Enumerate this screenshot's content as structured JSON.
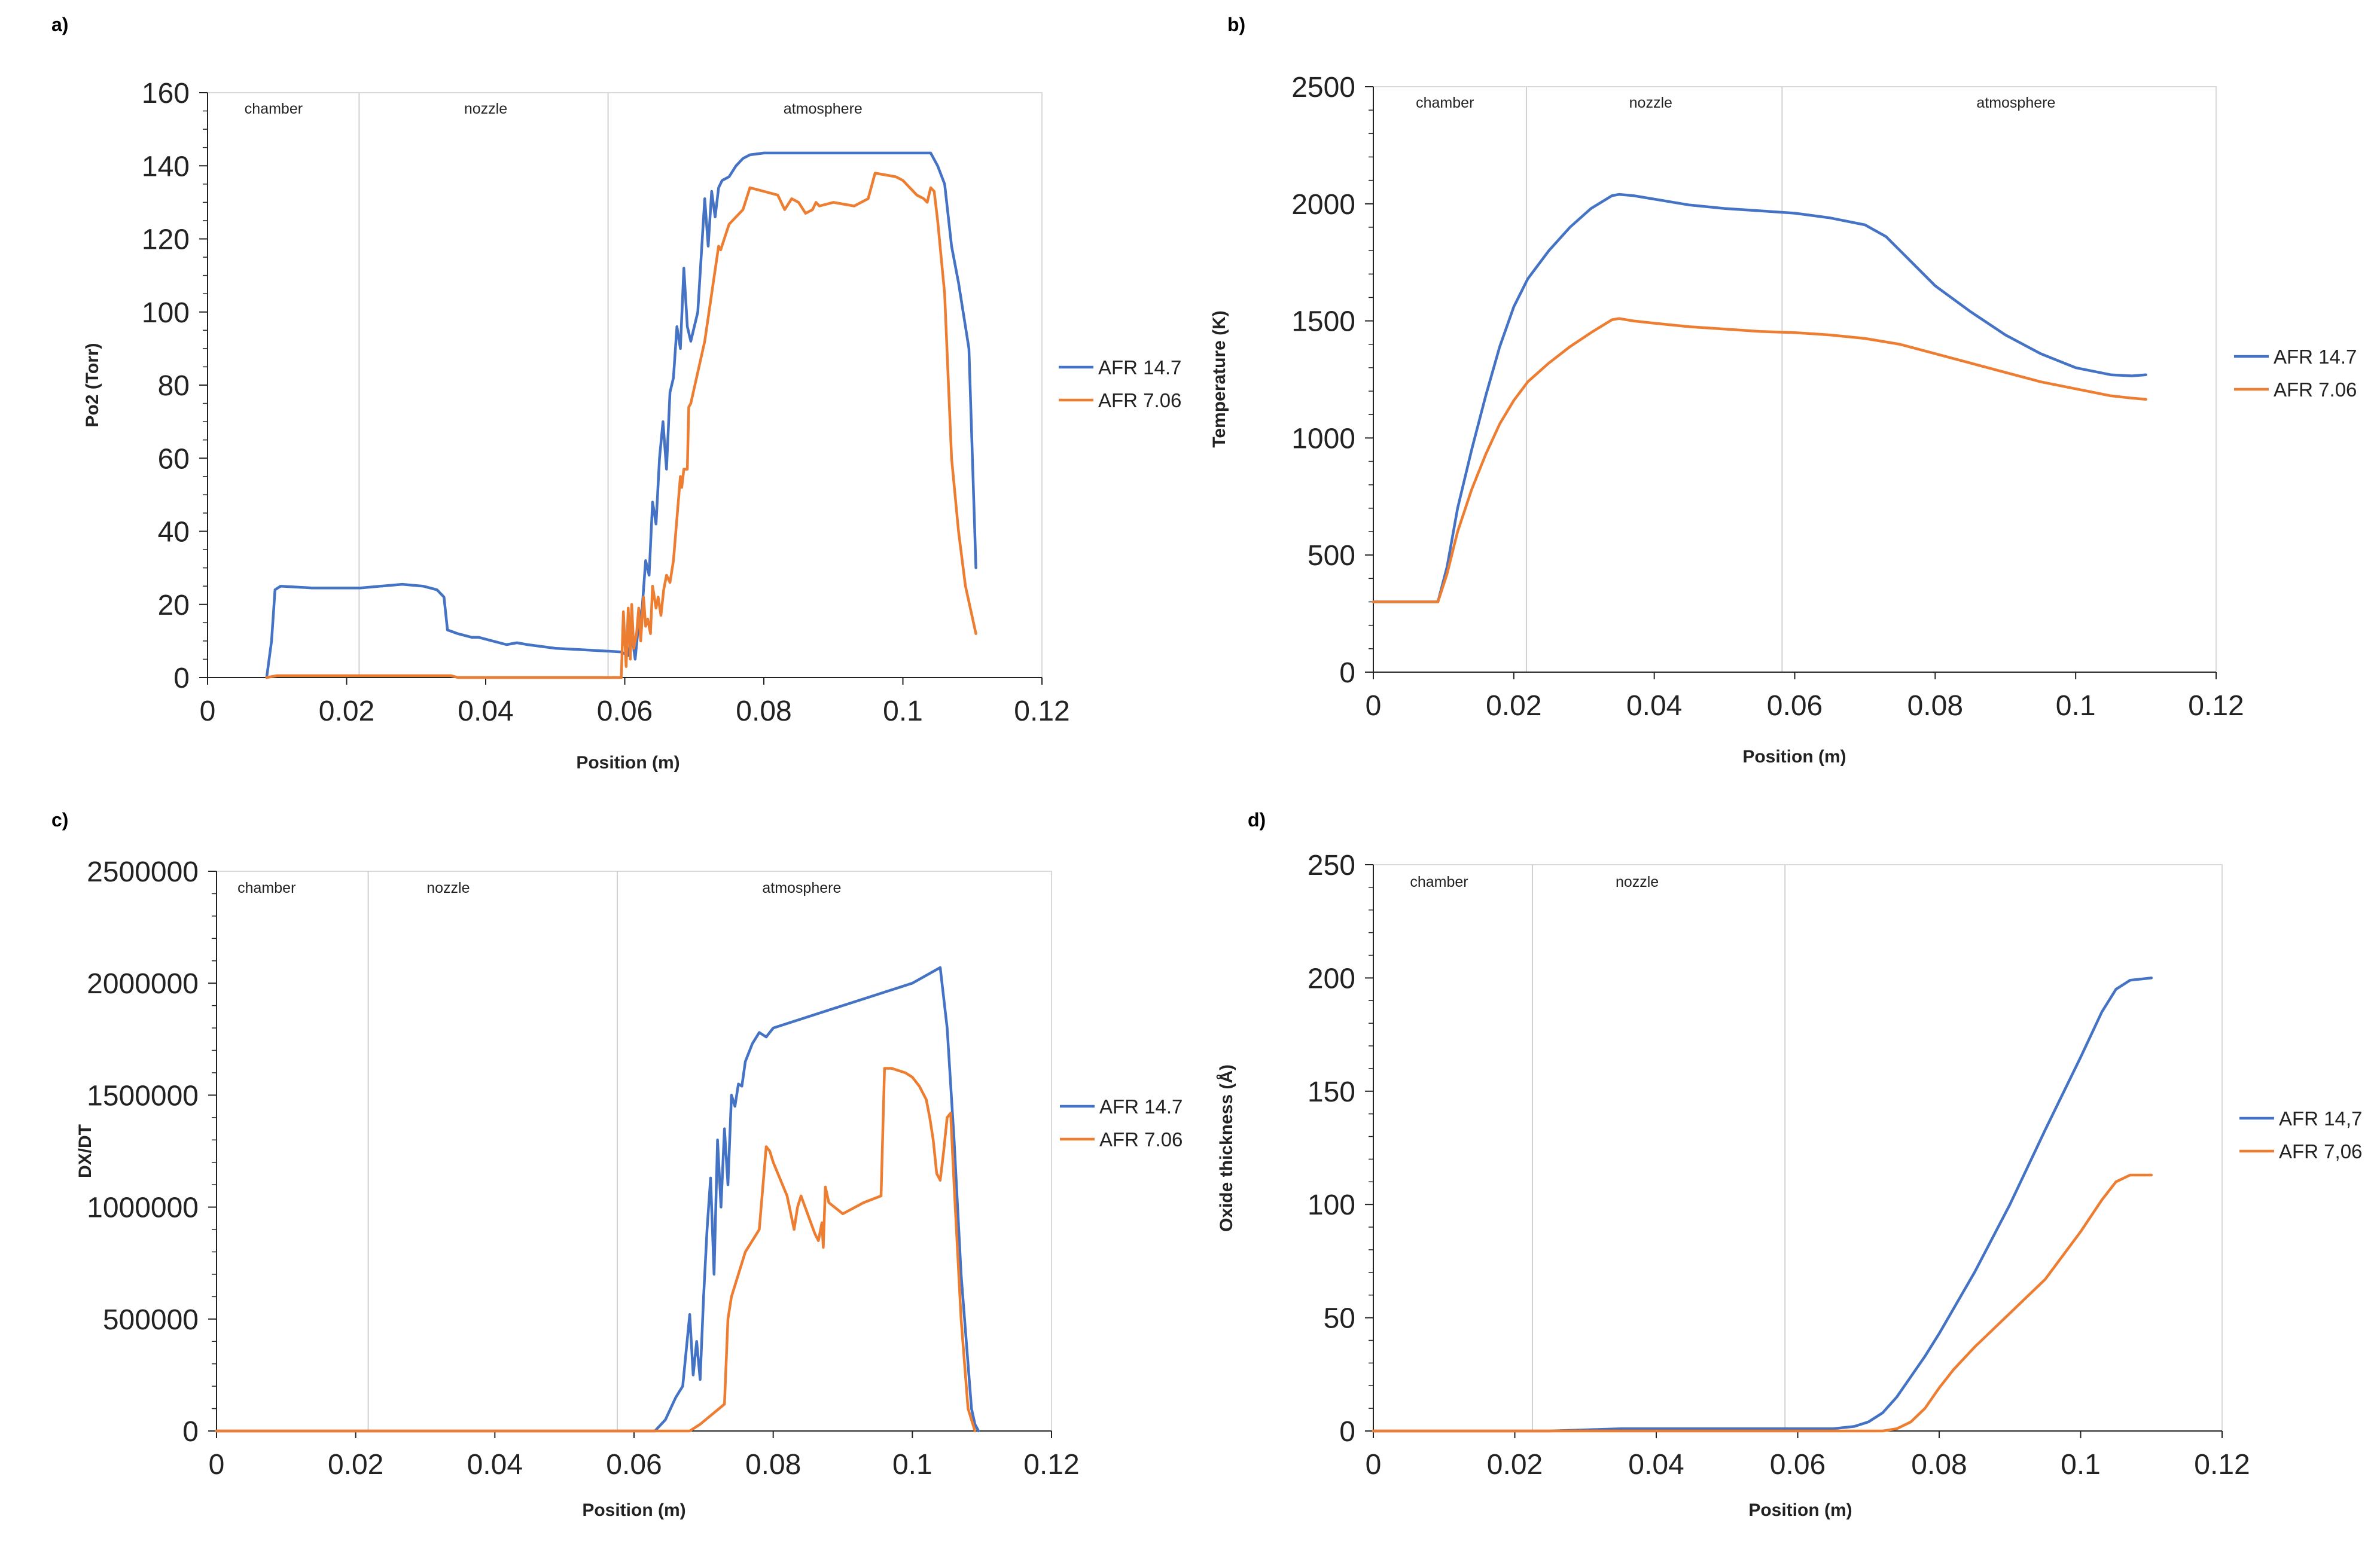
{
  "colors": {
    "afr_high": "#4472C4",
    "afr_low": "#ED7D31"
  },
  "chart_data": [
    {
      "id": "a",
      "panel_label": "a)",
      "type": "line",
      "xlabel": "Position (m)",
      "ylabel": "Po2 (Torr)",
      "xlim": [
        0,
        0.12
      ],
      "ylim": [
        0,
        160
      ],
      "xticks": [
        0,
        0.02,
        0.04,
        0.06,
        0.08,
        0.1,
        0.12
      ],
      "xtick_labels": [
        "0",
        "0.02",
        "0.04",
        "0.06",
        "0.08",
        "0.1",
        "0.12"
      ],
      "yticks": [
        0,
        20,
        40,
        60,
        80,
        100,
        120,
        140,
        160
      ],
      "ytick_labels": [
        "0",
        "20",
        "40",
        "60",
        "80",
        "100",
        "120",
        "140",
        "160"
      ],
      "y_minor": 4,
      "regions": [
        {
          "label": "chamber",
          "center": 0.0095
        },
        {
          "label": "nozzle",
          "center": 0.04
        },
        {
          "label": "atmosphere",
          "center": 0.0885
        }
      ],
      "dividers": [
        0.0218,
        0.0576
      ],
      "legend_position": "right",
      "series": [
        {
          "name": "AFR 14.7",
          "color_key": "afr_high",
          "x": [
            0.0085,
            0.0092,
            0.0097,
            0.0105,
            0.015,
            0.022,
            0.028,
            0.031,
            0.033,
            0.034,
            0.0345,
            0.036,
            0.038,
            0.039,
            0.041,
            0.043,
            0.0445,
            0.046,
            0.05,
            0.055,
            0.0595,
            0.0605,
            0.061,
            0.0615,
            0.062,
            0.0625,
            0.063,
            0.0635,
            0.064,
            0.0645,
            0.065,
            0.0655,
            0.066,
            0.0665,
            0.067,
            0.0675,
            0.068,
            0.0685,
            0.069,
            0.0695,
            0.0705,
            0.0715,
            0.072,
            0.0725,
            0.073,
            0.0735,
            0.074,
            0.075,
            0.076,
            0.077,
            0.078,
            0.08,
            0.085,
            0.09,
            0.095,
            0.1,
            0.104,
            0.105,
            0.106,
            0.107,
            0.108,
            0.1095,
            0.1105
          ],
          "y": [
            0,
            10,
            24,
            25,
            24.5,
            24.5,
            25.5,
            25,
            24,
            22,
            13,
            12,
            11,
            11,
            10,
            9,
            9.5,
            9,
            8,
            7.5,
            7,
            6,
            12,
            5,
            15,
            19,
            32,
            28,
            48,
            42,
            60,
            70,
            57,
            78,
            82,
            96,
            90,
            112,
            96,
            92,
            100,
            131,
            118,
            133,
            126,
            134,
            136,
            137,
            140,
            142,
            143,
            143.5,
            143.5,
            143.5,
            143.5,
            143.5,
            143.5,
            140,
            135,
            118,
            108,
            90,
            30
          ]
        },
        {
          "name": "AFR 7.06",
          "color_key": "afr_low",
          "x": [
            0.0085,
            0.01,
            0.02,
            0.03,
            0.035,
            0.036,
            0.0595,
            0.0598,
            0.0602,
            0.0605,
            0.0608,
            0.061,
            0.0613,
            0.0617,
            0.062,
            0.0623,
            0.0627,
            0.063,
            0.0633,
            0.0637,
            0.064,
            0.0645,
            0.0648,
            0.0652,
            0.0656,
            0.066,
            0.0665,
            0.067,
            0.068,
            0.0682,
            0.0685,
            0.069,
            0.0692,
            0.0695,
            0.0715,
            0.0735,
            0.0738,
            0.075,
            0.077,
            0.078,
            0.08,
            0.082,
            0.083,
            0.084,
            0.085,
            0.086,
            0.087,
            0.0875,
            0.088,
            0.09,
            0.093,
            0.095,
            0.096,
            0.099,
            0.1,
            0.101,
            0.102,
            0.103,
            0.1035,
            0.104,
            0.1045,
            0.105,
            0.106,
            0.107,
            0.108,
            0.109,
            0.1105
          ],
          "y": [
            0,
            0.5,
            0.5,
            0.5,
            0.5,
            0,
            0,
            18,
            3,
            19,
            5,
            20,
            8,
            12,
            19,
            10,
            22,
            14,
            16,
            12,
            25,
            19,
            22,
            17,
            24,
            28,
            26,
            32,
            55,
            52,
            57,
            57,
            74,
            75,
            92,
            118,
            117,
            124,
            128,
            134,
            133,
            132,
            128,
            131,
            130,
            127,
            128,
            130,
            129,
            130,
            129,
            131,
            138,
            137,
            136,
            134,
            132,
            131,
            130,
            134,
            133,
            125,
            105,
            60,
            40,
            25,
            12
          ]
        }
      ]
    },
    {
      "id": "b",
      "panel_label": "b)",
      "type": "line",
      "xlabel": "Position (m)",
      "ylabel": "Temperature (K)",
      "xlim": [
        0,
        0.12
      ],
      "ylim": [
        0,
        2500
      ],
      "xticks": [
        0,
        0.02,
        0.04,
        0.06,
        0.08,
        0.1,
        0.12
      ],
      "xtick_labels": [
        "0",
        "0.02",
        "0.04",
        "0.06",
        "0.08",
        "0.1",
        "0.12"
      ],
      "yticks": [
        0,
        500,
        1000,
        1500,
        2000,
        2500
      ],
      "ytick_labels": [
        "0",
        "500",
        "1000",
        "1500",
        "2000",
        "2500"
      ],
      "y_minor": 5,
      "regions": [
        {
          "label": "chamber",
          "center": 0.0102
        },
        {
          "label": "nozzle",
          "center": 0.0395
        },
        {
          "label": "atmosphere",
          "center": 0.0915
        }
      ],
      "dividers": [
        0.0218,
        0.0582
      ],
      "legend_position": "right",
      "series": [
        {
          "name": "AFR 14.7",
          "color_key": "afr_high",
          "x": [
            0,
            0.0092,
            0.0105,
            0.012,
            0.014,
            0.016,
            0.018,
            0.02,
            0.022,
            0.025,
            0.028,
            0.031,
            0.034,
            0.035,
            0.037,
            0.04,
            0.045,
            0.05,
            0.055,
            0.06,
            0.065,
            0.07,
            0.073,
            0.076,
            0.08,
            0.085,
            0.09,
            0.095,
            0.1,
            0.105,
            0.108,
            0.11
          ],
          "y": [
            300,
            300,
            450,
            700,
            950,
            1180,
            1390,
            1560,
            1680,
            1800,
            1900,
            1980,
            2035,
            2040,
            2035,
            2020,
            1995,
            1980,
            1970,
            1960,
            1940,
            1910,
            1860,
            1770,
            1650,
            1540,
            1440,
            1360,
            1300,
            1270,
            1265,
            1270
          ]
        },
        {
          "name": "AFR 7.06",
          "color_key": "afr_low",
          "x": [
            0,
            0.0092,
            0.0105,
            0.012,
            0.014,
            0.016,
            0.018,
            0.02,
            0.022,
            0.025,
            0.028,
            0.031,
            0.034,
            0.035,
            0.037,
            0.04,
            0.045,
            0.05,
            0.055,
            0.06,
            0.065,
            0.07,
            0.075,
            0.08,
            0.085,
            0.09,
            0.095,
            0.1,
            0.105,
            0.108,
            0.11
          ],
          "y": [
            300,
            300,
            420,
            600,
            780,
            930,
            1060,
            1160,
            1240,
            1320,
            1390,
            1450,
            1505,
            1510,
            1500,
            1490,
            1475,
            1465,
            1455,
            1450,
            1440,
            1425,
            1400,
            1360,
            1320,
            1280,
            1240,
            1210,
            1180,
            1170,
            1165
          ]
        }
      ]
    },
    {
      "id": "c",
      "panel_label": "c)",
      "type": "line",
      "xlabel": "Position (m)",
      "ylabel": "DX/DT",
      "xlim": [
        0,
        0.12
      ],
      "ylim": [
        0,
        2500000
      ],
      "xticks": [
        0,
        0.02,
        0.04,
        0.06,
        0.08,
        0.1,
        0.12
      ],
      "xtick_labels": [
        "0",
        "0.02",
        "0.04",
        "0.06",
        "0.08",
        "0.1",
        "0.12"
      ],
      "yticks": [
        0,
        500000,
        1000000,
        1500000,
        2000000,
        2500000
      ],
      "ytick_labels": [
        "0",
        "500000",
        "1000000",
        "1500000",
        "2000000",
        "2500000"
      ],
      "y_minor": 5,
      "regions": [
        {
          "label": "chamber",
          "center": 0.0072
        },
        {
          "label": "nozzle",
          "center": 0.0333
        },
        {
          "label": "atmosphere",
          "center": 0.0841
        }
      ],
      "dividers": [
        0.0218,
        0.0576
      ],
      "legend_position": "right",
      "series": [
        {
          "name": "AFR 14.7",
          "color_key": "afr_high",
          "x": [
            0,
            0.06,
            0.063,
            0.0645,
            0.066,
            0.067,
            0.068,
            0.0685,
            0.069,
            0.0695,
            0.07,
            0.0705,
            0.071,
            0.0715,
            0.072,
            0.0725,
            0.073,
            0.0735,
            0.074,
            0.0745,
            0.075,
            0.0755,
            0.076,
            0.077,
            0.078,
            0.079,
            0.08,
            0.082,
            0.085,
            0.09,
            0.095,
            0.1,
            0.104,
            0.105,
            0.106,
            0.107,
            0.108,
            0.1085,
            0.109,
            0.1095
          ],
          "y": [
            0,
            0,
            0,
            50000,
            150000,
            200000,
            520000,
            250000,
            400000,
            230000,
            600000,
            900000,
            1130000,
            700000,
            1300000,
            1000000,
            1350000,
            1100000,
            1500000,
            1450000,
            1550000,
            1540000,
            1650000,
            1730000,
            1780000,
            1760000,
            1800000,
            1820000,
            1850000,
            1900000,
            1950000,
            2000000,
            2070000,
            1800000,
            1300000,
            700000,
            300000,
            100000,
            30000,
            0
          ]
        },
        {
          "name": "AFR 7.06",
          "color_key": "afr_low",
          "x": [
            0,
            0.068,
            0.0695,
            0.073,
            0.0735,
            0.074,
            0.076,
            0.078,
            0.079,
            0.0795,
            0.08,
            0.082,
            0.083,
            0.0835,
            0.084,
            0.086,
            0.0865,
            0.087,
            0.0872,
            0.0875,
            0.088,
            0.09,
            0.093,
            0.0955,
            0.096,
            0.097,
            0.099,
            0.1,
            0.101,
            0.102,
            0.1025,
            0.103,
            0.1035,
            0.104,
            0.1045,
            0.105,
            0.1055,
            0.106,
            0.107,
            0.108,
            0.109
          ],
          "y": [
            0,
            0,
            30000,
            120000,
            500000,
            600000,
            800000,
            900000,
            1270000,
            1250000,
            1200000,
            1050000,
            900000,
            1000000,
            1050000,
            880000,
            850000,
            930000,
            820000,
            1090000,
            1020000,
            970000,
            1020000,
            1050000,
            1620000,
            1620000,
            1600000,
            1580000,
            1540000,
            1480000,
            1400000,
            1300000,
            1150000,
            1120000,
            1250000,
            1400000,
            1420000,
            1100000,
            500000,
            100000,
            0
          ]
        }
      ]
    },
    {
      "id": "d",
      "panel_label": "d)",
      "type": "line",
      "xlabel": "Position (m)",
      "ylabel": "Oxide thickness (Å)",
      "xlim": [
        0,
        0.12
      ],
      "ylim": [
        0,
        250
      ],
      "xticks": [
        0,
        0.02,
        0.04,
        0.06,
        0.08,
        0.1,
        0.12
      ],
      "xtick_labels": [
        "0",
        "0.02",
        "0.04",
        "0.06",
        "0.08",
        "0.1",
        "0.12"
      ],
      "yticks": [
        0,
        50,
        100,
        150,
        200,
        250
      ],
      "ytick_labels": [
        "0",
        "50",
        "100",
        "150",
        "200",
        "250"
      ],
      "y_minor": 5,
      "regions": [
        {
          "label": "chamber",
          "center": 0.0093
        },
        {
          "label": "nozzle",
          "center": 0.0373
        }
      ],
      "dividers": [
        0.0225,
        0.0582
      ],
      "legend_position": "right",
      "series": [
        {
          "name": "AFR 14,7",
          "color_key": "afr_high",
          "x": [
            0,
            0.025,
            0.03,
            0.035,
            0.04,
            0.05,
            0.06,
            0.065,
            0.068,
            0.07,
            0.072,
            0.074,
            0.076,
            0.078,
            0.08,
            0.085,
            0.09,
            0.095,
            0.1,
            0.103,
            0.105,
            0.107,
            0.11
          ],
          "y": [
            0,
            0,
            0.5,
            1,
            1,
            1,
            1,
            1,
            2,
            4,
            8,
            15,
            24,
            33,
            43,
            70,
            100,
            133,
            165,
            185,
            195,
            199,
            200
          ]
        },
        {
          "name": "AFR 7,06",
          "color_key": "afr_low",
          "x": [
            0,
            0.072,
            0.074,
            0.076,
            0.078,
            0.08,
            0.082,
            0.085,
            0.09,
            0.095,
            0.1,
            0.103,
            0.105,
            0.107,
            0.11
          ],
          "y": [
            0,
            0,
            1,
            4,
            10,
            19,
            27,
            37,
            52,
            67,
            88,
            102,
            110,
            113,
            113
          ]
        }
      ]
    }
  ]
}
